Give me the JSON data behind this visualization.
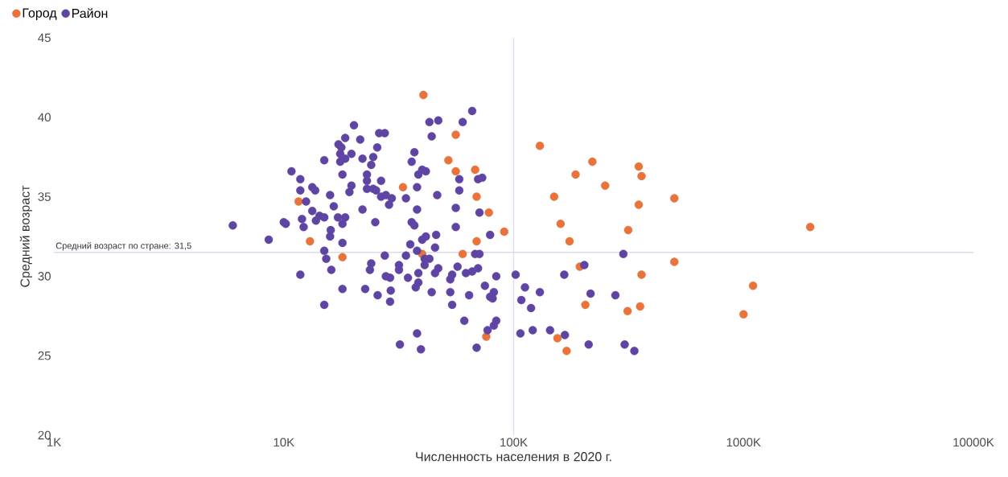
{
  "chart_data": {
    "type": "scatter",
    "xlabel": "Численность населения в 2020 г.",
    "ylabel": "Средний возраст",
    "log": "x",
    "legend": "top left",
    "xlim": [
      1000,
      10000000
    ],
    "ylim": [
      20,
      45
    ],
    "xticks": [
      {
        "value": 1000,
        "label": "1K"
      },
      {
        "value": 10000,
        "label": "10K"
      },
      {
        "value": 100000,
        "label": "100K"
      },
      {
        "value": 1000000,
        "label": "1000K"
      },
      {
        "value": 10000000,
        "label": "10000K"
      }
    ],
    "yticks": [
      20,
      25,
      30,
      35,
      40,
      45
    ],
    "ref_lines": [
      {
        "axis": "y",
        "value": 31.5,
        "label": "Средний возраст по стране: 31,5",
        "color": "#dcd9f0"
      },
      {
        "axis": "x",
        "value": 100000,
        "color": "#dcd9f0"
      }
    ],
    "series": [
      {
        "name": "Город",
        "color": "#e8743b",
        "x": [
          40500,
          52000,
          56000,
          56000,
          68000,
          69000,
          78000,
          69000,
          91000,
          33000,
          11600,
          13000,
          18000,
          40000,
          60000,
          76000,
          130000,
          186000,
          220000,
          250000,
          150000,
          160000,
          175000,
          194000,
          350000,
          360000,
          350000,
          315000,
          500000,
          500000,
          360000,
          205000,
          155000,
          170000,
          313000,
          355000,
          1100000,
          1000000,
          1950000
        ],
        "values": [
          41.4,
          37.3,
          38.9,
          36.6,
          36.7,
          35.0,
          34.0,
          32.2,
          32.8,
          35.6,
          34.7,
          32.2,
          31.2,
          31.4,
          31.4,
          26.2,
          38.2,
          36.4,
          37.2,
          35.7,
          35.0,
          33.3,
          32.2,
          30.6,
          36.9,
          36.3,
          34.5,
          32.9,
          34.9,
          30.9,
          30.1,
          28.2,
          26.1,
          25.3,
          27.8,
          28.1,
          29.4,
          27.6,
          33.1
        ]
      },
      {
        "name": "Район",
        "color": "#5f45a3",
        "x": [
          20200,
          18500,
          21500,
          26000,
          27500,
          17300,
          17800,
          25500,
          17600,
          19700,
          18500,
          22000,
          24500,
          17600,
          15000,
          24000,
          37000,
          36000,
          40000,
          41500,
          38500,
          10800,
          18000,
          23000,
          11800,
          23000,
          26500,
          11800,
          13300,
          13700,
          19700,
          19300,
          23000,
          24500,
          25200,
          26500,
          27800,
          29500,
          34000,
          38000,
          15900,
          12500,
          16500,
          28700,
          22000,
          38000,
          13300,
          14300,
          15000,
          12000,
          17200,
          18500,
          10200,
          12200,
          13800,
          18000,
          25000,
          36000,
          37000,
          16000,
          6000,
          8600,
          10000,
          15900,
          18000,
          15000,
          15300,
          16100,
          11800,
          18000,
          15000,
          22600,
          25600,
          24000,
          23700,
          27500,
          34000,
          31700,
          31700,
          27800,
          29000,
          34700,
          29200,
          29000,
          35500,
          38000,
          40000,
          41500,
          41000,
          41000,
          38500,
          38500,
          37500,
          38000,
          32000,
          39500,
          46000,
          56000,
          79000,
          45500,
          43000,
          68000,
          71000,
          57000,
          47000,
          45500,
          54000,
          53000,
          62000,
          66000,
          70000,
          84000,
          44000,
          53000,
          64000,
          75000,
          82000,
          79000,
          81000,
          54000,
          61000,
          84000,
          82000,
          77000,
          69000,
          102000,
          112000,
          130000,
          108000,
          119000,
          107000,
          121000,
          144000,
          167000,
          166000,
          203000,
          216000,
          212000,
          300000,
          277000,
          304000,
          335000,
          43000,
          47000,
          60000,
          66000,
          44000,
          58000,
          70000,
          73000,
          46500,
          58000,
          56000,
          71000
        ],
        "values": [
          39.5,
          38.7,
          38.6,
          39.0,
          39.0,
          38.3,
          38.1,
          38.1,
          37.7,
          37.7,
          37.4,
          37.4,
          37.5,
          37.2,
          37.3,
          37.0,
          37.8,
          37.2,
          36.7,
          36.6,
          36.4,
          36.6,
          36.4,
          36.4,
          36.1,
          36.0,
          36.0,
          35.4,
          35.6,
          35.4,
          35.7,
          35.3,
          35.5,
          35.5,
          35.4,
          35.0,
          35.1,
          34.9,
          34.9,
          35.6,
          35.1,
          34.7,
          34.4,
          34.5,
          34.2,
          34.2,
          34.1,
          33.8,
          33.7,
          33.6,
          33.7,
          33.7,
          33.3,
          33.1,
          33.5,
          33.3,
          33.4,
          33.4,
          33.2,
          32.9,
          33.2,
          32.3,
          33.4,
          32.5,
          32.1,
          31.6,
          31.1,
          30.4,
          30.1,
          29.2,
          28.2,
          29.2,
          28.8,
          30.8,
          30.4,
          31.3,
          31.3,
          30.7,
          30.4,
          30.0,
          29.9,
          29.9,
          29.1,
          28.4,
          32.0,
          31.6,
          32.3,
          32.5,
          31.1,
          30.7,
          30.2,
          29.6,
          29.3,
          26.4,
          25.7,
          25.4,
          32.6,
          33.1,
          32.6,
          31.8,
          31.1,
          31.4,
          31.4,
          30.6,
          30.5,
          30.2,
          30.1,
          29.8,
          30.2,
          30.3,
          30.5,
          30.0,
          29.0,
          29.0,
          28.8,
          29.4,
          29.0,
          28.7,
          28.6,
          28.2,
          27.2,
          27.2,
          26.9,
          26.6,
          25.5,
          30.1,
          29.3,
          29.0,
          28.5,
          28.0,
          26.4,
          26.6,
          26.6,
          26.3,
          30.1,
          30.7,
          28.9,
          25.7,
          31.4,
          28.8,
          25.7,
          25.3,
          39.7,
          39.8,
          39.7,
          40.4,
          38.8,
          36.1,
          36.1,
          36.2,
          35.1,
          35.4,
          34.3,
          34.0
        ]
      }
    ]
  }
}
